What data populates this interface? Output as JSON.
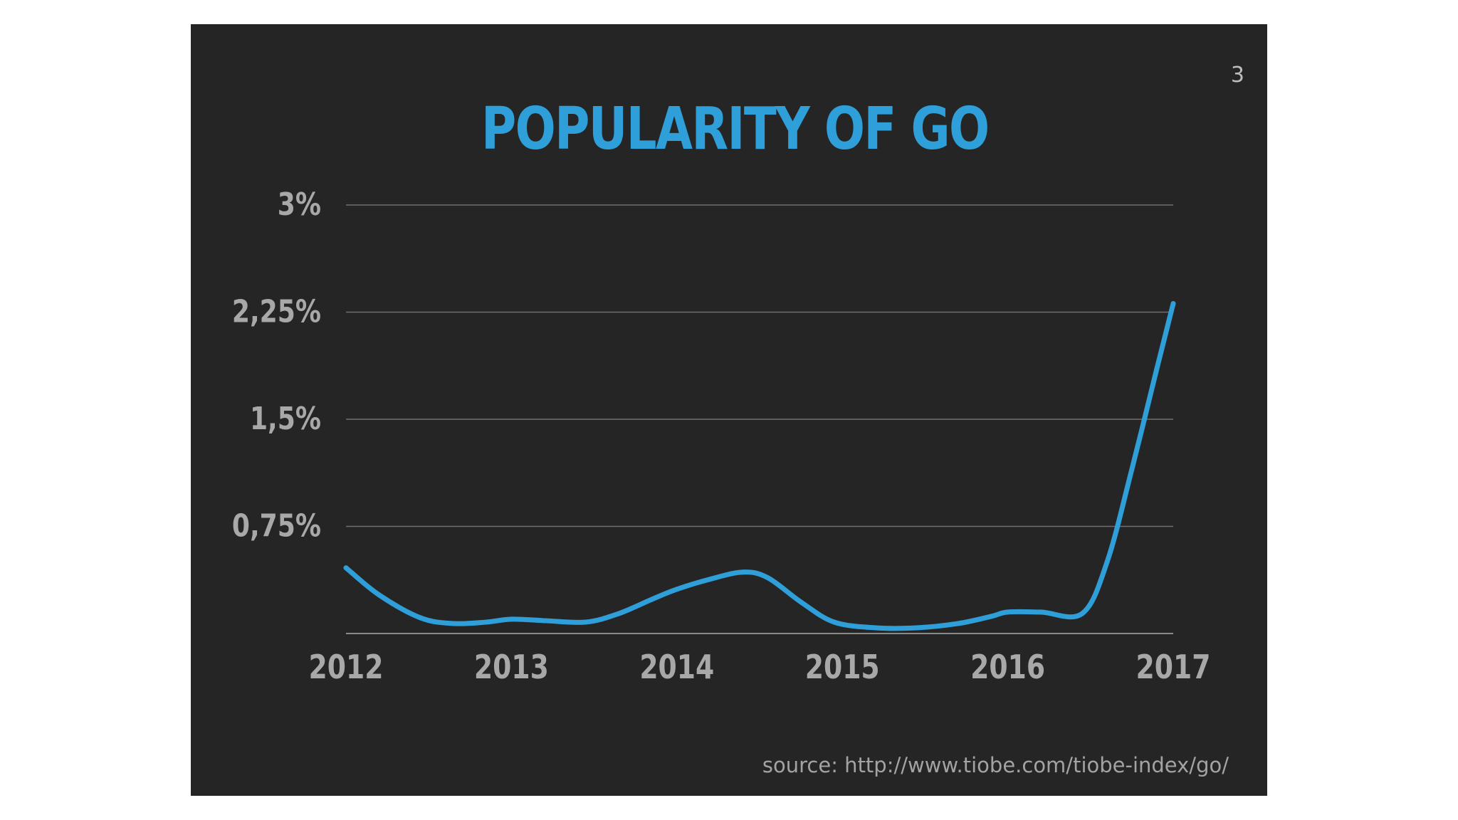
{
  "slide": {
    "number": "3",
    "source": "source: http://www.tiobe.com/tiobe-index/go/"
  },
  "chart_data": {
    "type": "line",
    "title": "POPULARITY OF GO",
    "xlabel": "",
    "ylabel": "",
    "x_ticks": [
      "2012",
      "2013",
      "2014",
      "2015",
      "2016",
      "2017"
    ],
    "y_ticks": [
      {
        "value": 0.75,
        "label": "0,75%"
      },
      {
        "value": 1.5,
        "label": "1,5%"
      },
      {
        "value": 2.25,
        "label": "2,25%"
      },
      {
        "value": 3,
        "label": "3%"
      }
    ],
    "xlim": [
      2012,
      2017
    ],
    "ylim": [
      0,
      3
    ],
    "grid": true,
    "line_color": "#2f9fd9",
    "series": [
      {
        "x": [
          2012.0,
          2012.2,
          2012.45,
          2012.65,
          2012.85,
          2013.0,
          2013.2,
          2013.45,
          2013.65,
          2013.85,
          2014.0,
          2014.2,
          2014.4,
          2014.55,
          2014.75,
          2014.95,
          2015.2,
          2015.45,
          2015.7,
          2015.9,
          2016.0,
          2016.2,
          2016.45,
          2016.6,
          2016.75,
          2016.9,
          2017.0
        ],
        "y": [
          0.46,
          0.27,
          0.11,
          0.07,
          0.08,
          0.1,
          0.09,
          0.08,
          0.14,
          0.24,
          0.31,
          0.38,
          0.43,
          0.39,
          0.22,
          0.08,
          0.04,
          0.04,
          0.07,
          0.12,
          0.15,
          0.15,
          0.14,
          0.5,
          1.15,
          1.85,
          2.31
        ]
      }
    ]
  }
}
